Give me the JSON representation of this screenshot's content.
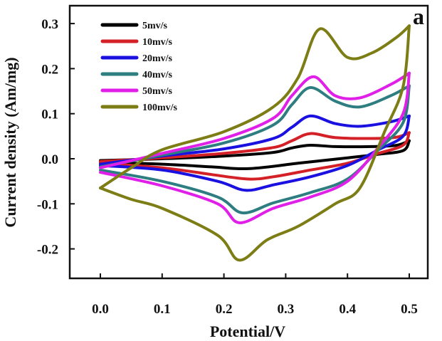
{
  "chart_data": {
    "type": "line",
    "panel_label": "a",
    "xlabel": "Potential/V",
    "ylabel": "Current density (Am/mg)",
    "xlim": [
      -0.1,
      0.52
    ],
    "ylim": [
      -0.25,
      0.33
    ],
    "xticks": [
      0.0,
      0.1,
      0.2,
      0.3,
      0.4,
      0.5
    ],
    "xtick_labels": [
      "0.0",
      "0.1",
      "0.2",
      "0.3",
      "0.4",
      "0.5"
    ],
    "yticks": [
      0.3,
      0.2,
      0.1,
      0.0,
      -0.1,
      -0.2
    ],
    "ytick_labels": [
      "0.3",
      "0.2",
      "0.1",
      "0.0",
      "-0.1",
      "-0.2"
    ],
    "grid": false,
    "legend_position": "top-left",
    "series": [
      {
        "name": "5mv/s",
        "color": "#000000",
        "anodic": [
          [
            0.0,
            -0.004
          ],
          [
            0.1,
            0.0
          ],
          [
            0.2,
            0.006
          ],
          [
            0.28,
            0.014
          ],
          [
            0.31,
            0.024
          ],
          [
            0.34,
            0.03
          ],
          [
            0.38,
            0.027
          ],
          [
            0.44,
            0.027
          ],
          [
            0.48,
            0.03
          ],
          [
            0.5,
            0.04
          ]
        ],
        "cathodic": [
          [
            0.5,
            0.04
          ],
          [
            0.49,
            0.018
          ],
          [
            0.45,
            0.01
          ],
          [
            0.4,
            0.002
          ],
          [
            0.32,
            -0.01
          ],
          [
            0.24,
            -0.022
          ],
          [
            0.18,
            -0.018
          ],
          [
            0.1,
            -0.012
          ],
          [
            0.0,
            -0.008
          ]
        ]
      },
      {
        "name": "10mv/s",
        "color": "#d42027",
        "anodic": [
          [
            0.0,
            -0.006
          ],
          [
            0.1,
            0.002
          ],
          [
            0.2,
            0.012
          ],
          [
            0.28,
            0.025
          ],
          [
            0.31,
            0.04
          ],
          [
            0.34,
            0.056
          ],
          [
            0.38,
            0.047
          ],
          [
            0.44,
            0.045
          ],
          [
            0.48,
            0.048
          ],
          [
            0.5,
            0.058
          ]
        ],
        "cathodic": [
          [
            0.5,
            0.058
          ],
          [
            0.49,
            0.03
          ],
          [
            0.45,
            0.012
          ],
          [
            0.4,
            -0.01
          ],
          [
            0.34,
            -0.025
          ],
          [
            0.28,
            -0.04
          ],
          [
            0.24,
            -0.045
          ],
          [
            0.18,
            -0.035
          ],
          [
            0.1,
            -0.02
          ],
          [
            0.0,
            -0.01
          ]
        ]
      },
      {
        "name": "20mv/s",
        "color": "#1a10e0",
        "anodic": [
          [
            0.0,
            -0.012
          ],
          [
            0.1,
            0.006
          ],
          [
            0.2,
            0.022
          ],
          [
            0.28,
            0.045
          ],
          [
            0.31,
            0.07
          ],
          [
            0.34,
            0.095
          ],
          [
            0.38,
            0.078
          ],
          [
            0.42,
            0.072
          ],
          [
            0.47,
            0.082
          ],
          [
            0.5,
            0.095
          ]
        ],
        "cathodic": [
          [
            0.5,
            0.095
          ],
          [
            0.49,
            0.05
          ],
          [
            0.45,
            0.02
          ],
          [
            0.4,
            -0.015
          ],
          [
            0.34,
            -0.04
          ],
          [
            0.28,
            -0.058
          ],
          [
            0.235,
            -0.07
          ],
          [
            0.19,
            -0.05
          ],
          [
            0.1,
            -0.025
          ],
          [
            0.0,
            -0.015
          ]
        ]
      },
      {
        "name": "40mv/s",
        "color": "#2e7d80",
        "anodic": [
          [
            0.0,
            -0.018
          ],
          [
            0.1,
            0.008
          ],
          [
            0.2,
            0.035
          ],
          [
            0.28,
            0.075
          ],
          [
            0.31,
            0.12
          ],
          [
            0.34,
            0.158
          ],
          [
            0.38,
            0.128
          ],
          [
            0.42,
            0.115
          ],
          [
            0.47,
            0.14
          ],
          [
            0.5,
            0.162
          ]
        ],
        "cathodic": [
          [
            0.5,
            0.162
          ],
          [
            0.49,
            0.08
          ],
          [
            0.45,
            0.02
          ],
          [
            0.4,
            -0.045
          ],
          [
            0.34,
            -0.075
          ],
          [
            0.28,
            -0.098
          ],
          [
            0.23,
            -0.12
          ],
          [
            0.19,
            -0.085
          ],
          [
            0.1,
            -0.05
          ],
          [
            0.0,
            -0.025
          ]
        ]
      },
      {
        "name": "50mv/s",
        "color": "#e020e8",
        "anodic": [
          [
            0.0,
            -0.02
          ],
          [
            0.1,
            0.012
          ],
          [
            0.2,
            0.045
          ],
          [
            0.28,
            0.09
          ],
          [
            0.31,
            0.14
          ],
          [
            0.345,
            0.182
          ],
          [
            0.38,
            0.14
          ],
          [
            0.42,
            0.135
          ],
          [
            0.47,
            0.165
          ],
          [
            0.5,
            0.19
          ]
        ],
        "cathodic": [
          [
            0.5,
            0.19
          ],
          [
            0.49,
            0.1
          ],
          [
            0.45,
            0.025
          ],
          [
            0.4,
            -0.05
          ],
          [
            0.34,
            -0.085
          ],
          [
            0.28,
            -0.11
          ],
          [
            0.225,
            -0.142
          ],
          [
            0.19,
            -0.1
          ],
          [
            0.1,
            -0.06
          ],
          [
            0.0,
            -0.03
          ]
        ]
      },
      {
        "name": "100mv/s",
        "color": "#7d7d15",
        "anodic": [
          [
            0.0,
            -0.065
          ],
          [
            0.05,
            -0.02
          ],
          [
            0.1,
            0.02
          ],
          [
            0.2,
            0.06
          ],
          [
            0.28,
            0.115
          ],
          [
            0.32,
            0.18
          ],
          [
            0.355,
            0.288
          ],
          [
            0.4,
            0.225
          ],
          [
            0.44,
            0.235
          ],
          [
            0.48,
            0.27
          ],
          [
            0.5,
            0.295
          ]
        ],
        "cathodic": [
          [
            0.5,
            0.295
          ],
          [
            0.49,
            0.16
          ],
          [
            0.46,
            0.06
          ],
          [
            0.42,
            -0.065
          ],
          [
            0.38,
            -0.1
          ],
          [
            0.32,
            -0.15
          ],
          [
            0.27,
            -0.18
          ],
          [
            0.225,
            -0.225
          ],
          [
            0.19,
            -0.17
          ],
          [
            0.1,
            -0.11
          ],
          [
            0.05,
            -0.09
          ],
          [
            0.0,
            -0.065
          ]
        ]
      }
    ]
  }
}
